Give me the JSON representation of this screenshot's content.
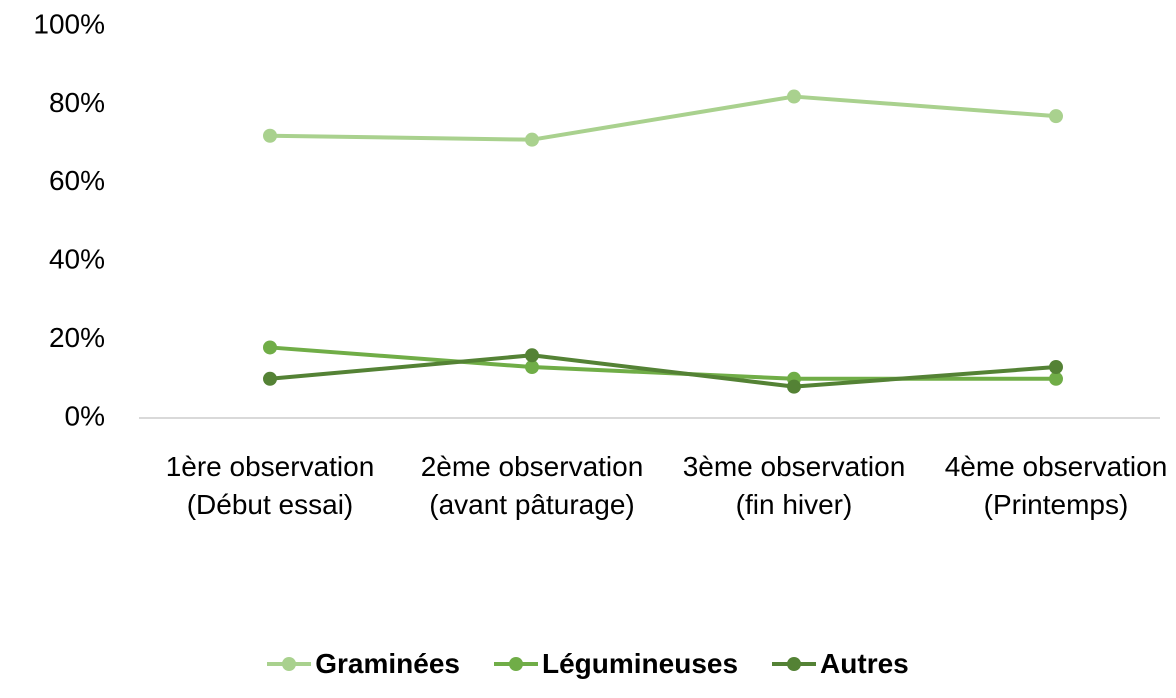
{
  "chart_data": {
    "type": "line",
    "categories": [
      "1ère observation (Début essai)",
      "2ème observation (avant pâturage)",
      "3ème observation (fin hiver)",
      "4ème observation (Printemps)"
    ],
    "series": [
      {
        "name": "Graminées",
        "color": "#a9d18e",
        "values": [
          72,
          71,
          82,
          77
        ]
      },
      {
        "name": "Légumineuses",
        "color": "#70ad47",
        "values": [
          18,
          13,
          10,
          10
        ]
      },
      {
        "name": "Autres",
        "color": "#548235",
        "values": [
          10,
          16,
          8,
          13
        ]
      }
    ],
    "ylim": [
      0,
      100
    ],
    "yticks": [
      {
        "value": 0,
        "label": "0%"
      },
      {
        "value": 20,
        "label": "20%"
      },
      {
        "value": 40,
        "label": "40%"
      },
      {
        "value": 60,
        "label": "60%"
      },
      {
        "value": 80,
        "label": "80%"
      },
      {
        "value": 100,
        "label": "100%"
      }
    ],
    "grid": false,
    "legend": "bottom"
  }
}
